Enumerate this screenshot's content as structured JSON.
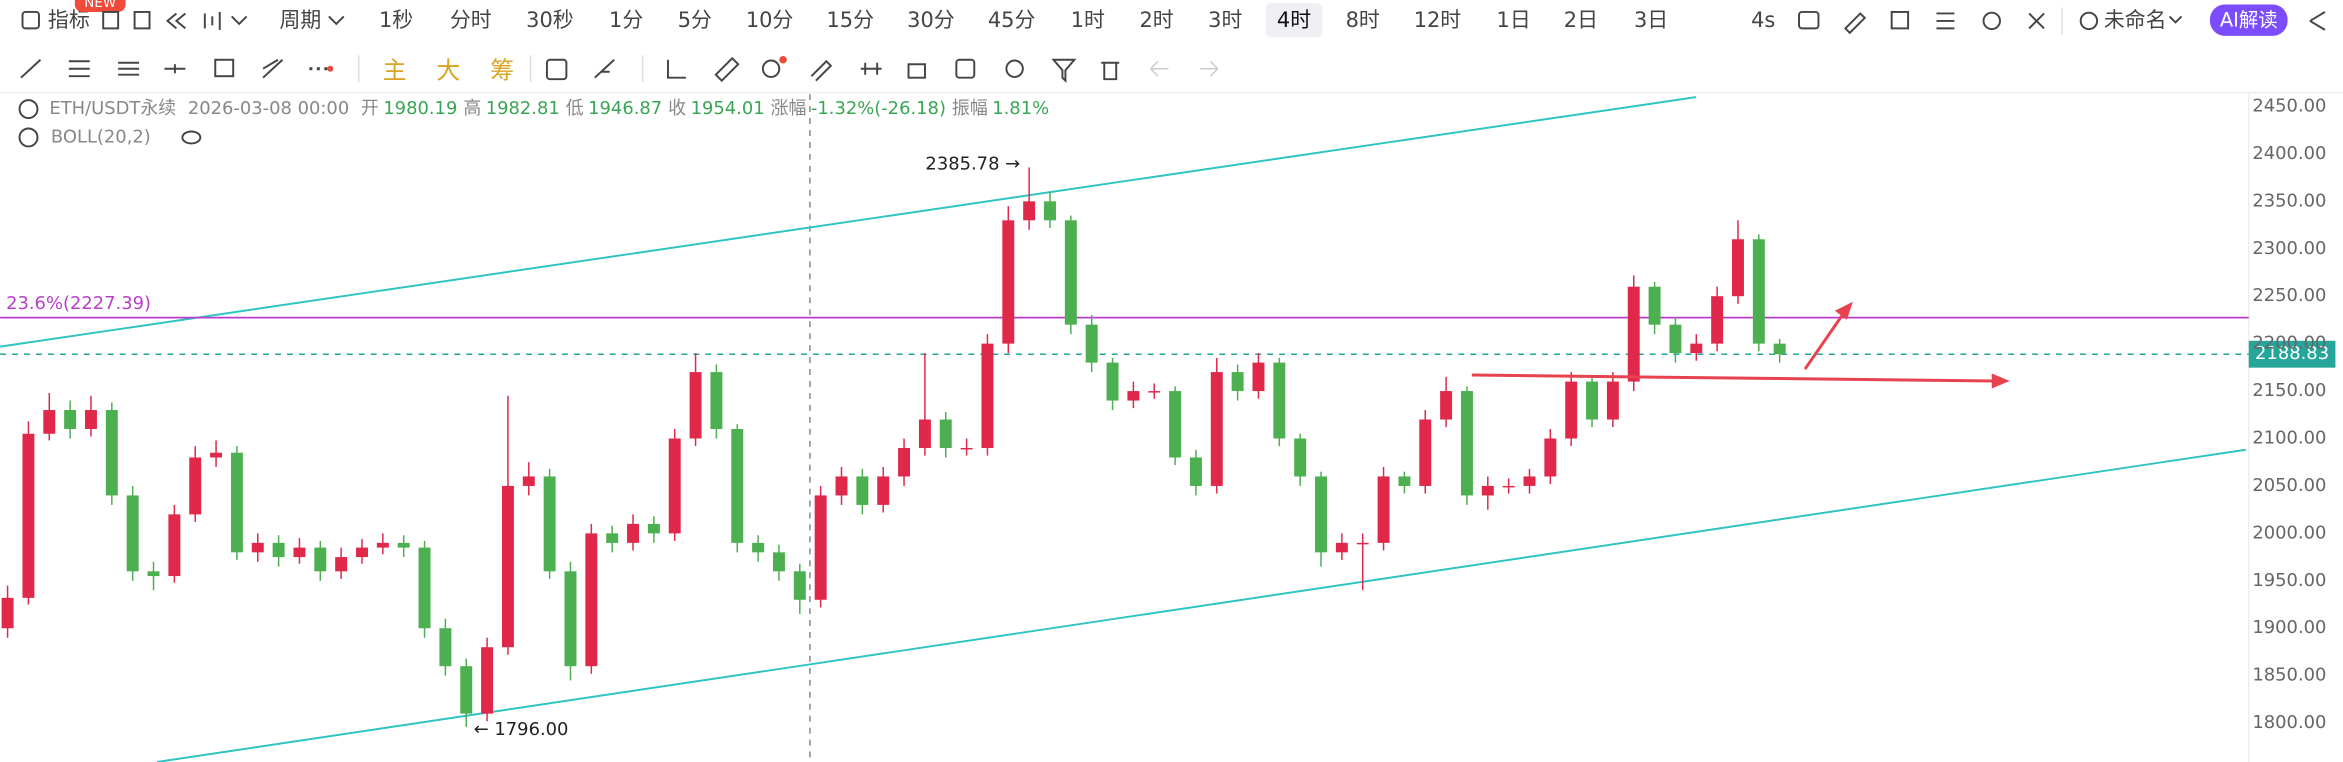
{
  "toolbar": {
    "indicator": "指标",
    "badge": "NEW",
    "period": "周期",
    "intervals": [
      "1秒",
      "分时",
      "30秒",
      "1分",
      "5分",
      "10分",
      "15分",
      "30分",
      "45分",
      "1时",
      "2时",
      "3时",
      "4时",
      "8时",
      "12时",
      "1日",
      "2日",
      "3日"
    ],
    "selected": 12,
    "refresh": "4s",
    "layout_name": "未命名",
    "ai_button": "AI解读"
  },
  "drawing_tools": {
    "quick": [
      "主",
      "大",
      "筹"
    ]
  },
  "info": {
    "symbol": "ETH/USDT永续",
    "time": "2026-03-08 00:00",
    "fields": [
      {
        "label": "开",
        "value": "1980.19"
      },
      {
        "label": "高",
        "value": "1982.81"
      },
      {
        "label": "低",
        "value": "1946.87"
      },
      {
        "label": "收",
        "value": "1954.01"
      },
      {
        "label": "涨幅",
        "value": "-1.32%(-26.18)"
      },
      {
        "label": "振幅",
        "value": "1.81%"
      }
    ]
  },
  "indicator": "BOLL(20,2)",
  "chart_data": {
    "type": "candlestick",
    "up_color": "#e0294a",
    "down_color": "#4caf50",
    "open": [
      1900,
      1932,
      2105,
      2130,
      2110,
      2130,
      2040,
      1960,
      1955,
      2020,
      2080,
      2085,
      1980,
      1990,
      1975,
      1985,
      1960,
      1975,
      1985,
      1990,
      1985,
      1900,
      1860,
      1810,
      1880,
      2050,
      2060,
      1960,
      1860,
      2000,
      1990,
      2010,
      2000,
      2100,
      2170,
      2110,
      1990,
      1980,
      1960,
      1930,
      2040,
      2060,
      2030,
      2060,
      2090,
      2120,
      2090,
      2090,
      2200,
      2330,
      2350,
      2330,
      2220,
      2180,
      2140,
      2150,
      2150,
      2080,
      2050,
      2170,
      2150,
      2180,
      2100,
      2060,
      1980,
      1990,
      1990,
      2060,
      2050,
      2120,
      2150,
      2040,
      2050,
      2050,
      2060,
      2100,
      2160,
      2120,
      2160,
      2260,
      2220,
      2190,
      2200,
      2250,
      2310,
      2200
    ],
    "high": [
      1945,
      2118,
      2148,
      2140,
      2145,
      2138,
      2050,
      1970,
      2030,
      2092,
      2098,
      2092,
      2000,
      1998,
      1995,
      1992,
      1985,
      1994,
      2000,
      1998,
      1992,
      1910,
      1868,
      1890,
      2145,
      2075,
      2068,
      1970,
      2010,
      2008,
      2020,
      2018,
      2110,
      2190,
      2178,
      2115,
      1998,
      1988,
      1968,
      2050,
      2070,
      2068,
      2070,
      2100,
      2190,
      2128,
      2100,
      2210,
      2345,
      2385.78,
      2360,
      2335,
      2230,
      2185,
      2160,
      2158,
      2155,
      2088,
      2185,
      2178,
      2190,
      2185,
      2105,
      2065,
      2000,
      2000,
      2070,
      2065,
      2130,
      2165,
      2155,
      2060,
      2058,
      2068,
      2110,
      2170,
      2165,
      2170,
      2272,
      2265,
      2228,
      2210,
      2260,
      2330,
      2315,
      2205
    ],
    "low": [
      1890,
      1925,
      2098,
      2100,
      2102,
      2030,
      1950,
      1940,
      1948,
      2012,
      2070,
      1972,
      1970,
      1965,
      1968,
      1950,
      1952,
      1968,
      1978,
      1975,
      1890,
      1850,
      1796,
      1802,
      1872,
      2040,
      1952,
      1845,
      1852,
      1980,
      1982,
      1990,
      1992,
      2092,
      2100,
      1980,
      1970,
      1950,
      1915,
      1922,
      2030,
      2020,
      2022,
      2050,
      2082,
      2080,
      2082,
      2082,
      2190,
      2320,
      2322,
      2210,
      2170,
      2130,
      2132,
      2142,
      2072,
      2040,
      2042,
      2140,
      2142,
      2092,
      2050,
      1965,
      1972,
      1940,
      1982,
      2042,
      2042,
      2112,
      2030,
      2025,
      2042,
      2042,
      2052,
      2092,
      2112,
      2112,
      2150,
      2210,
      2180,
      2182,
      2192,
      2242,
      2192,
      2180
    ],
    "close": [
      1932,
      2105,
      2130,
      2110,
      2130,
      2040,
      1960,
      1955,
      2020,
      2080,
      2085,
      1980,
      1990,
      1975,
      1985,
      1960,
      1975,
      1985,
      1990,
      1985,
      1900,
      1860,
      1810,
      1880,
      2050,
      2060,
      1960,
      1860,
      2000,
      1990,
      2010,
      2000,
      2100,
      2170,
      2110,
      1990,
      1980,
      1960,
      1930,
      2040,
      2060,
      2030,
      2060,
      2090,
      2120,
      2090,
      2090,
      2200,
      2330,
      2350,
      2330,
      2220,
      2180,
      2140,
      2150,
      2150,
      2080,
      2050,
      2170,
      2150,
      2180,
      2100,
      2060,
      1980,
      1990,
      1990,
      2060,
      2050,
      2120,
      2150,
      2040,
      2050,
      2050,
      2060,
      2100,
      2160,
      2120,
      2160,
      2260,
      2220,
      2190,
      2200,
      2250,
      2310,
      2200,
      2188.83
    ],
    "ylim": [
      1759,
      2463
    ],
    "yticks": [
      {
        "value": 1800,
        "label": "1800.00"
      },
      {
        "value": 1850,
        "label": "1850.00"
      },
      {
        "value": 1900,
        "label": "1900.00"
      },
      {
        "value": 1950,
        "label": "1950.00"
      },
      {
        "value": 2000,
        "label": "2000.00"
      },
      {
        "value": 2050,
        "label": "2050.00"
      },
      {
        "value": 2100,
        "label": "2100.00"
      },
      {
        "value": 2150,
        "label": "2150.00"
      },
      {
        "value": 2200,
        "label": "2200.00"
      },
      {
        "value": 2250,
        "label": "2250.00"
      },
      {
        "value": 2300,
        "label": "2300.00"
      },
      {
        "value": 2350,
        "label": "2350.00"
      },
      {
        "value": 2400,
        "label": "2400.00"
      },
      {
        "value": 2450,
        "label": "2450.00"
      }
    ],
    "grid": false,
    "last_price": {
      "value": 2188.83,
      "label": "2188.83",
      "color": "#26a69a"
    },
    "fib_level": {
      "value": 2227.39,
      "label": "23.6%(2227.39)",
      "color": "#b93fc9"
    },
    "annotations": [
      {
        "value": 2385.78,
        "label": "2385.78 →"
      },
      {
        "value": 1796,
        "label": "← 1796.00"
      }
    ]
  }
}
